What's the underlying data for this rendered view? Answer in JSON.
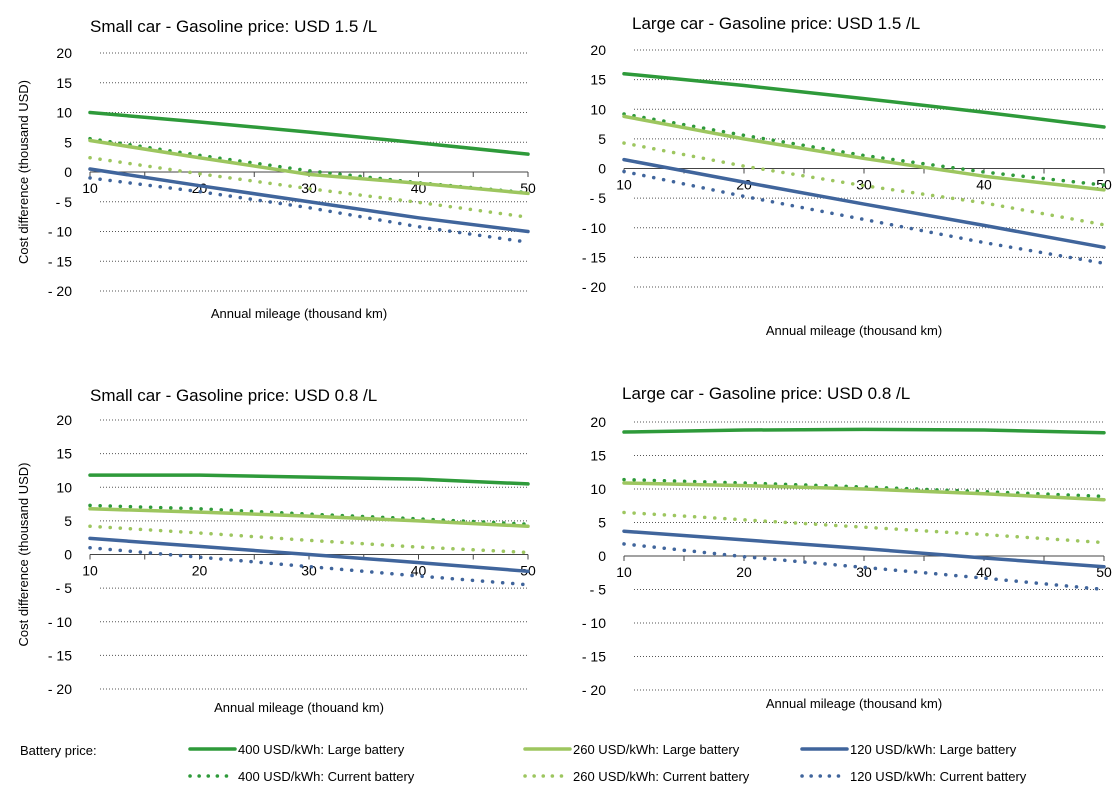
{
  "colors": {
    "dark_green": "#2e9a3a",
    "light_green": "#9dc65f",
    "blue": "#40659c",
    "grid": "#555555"
  },
  "legend": {
    "title": "Battery price:",
    "entries": [
      {
        "label": "400 USD/kWh: Large battery",
        "color": "#2e9a3a",
        "style": "solid"
      },
      {
        "label": "260 USD/kWh: Large battery",
        "color": "#9dc65f",
        "style": "solid"
      },
      {
        "label": "120 USD/kWh: Large battery",
        "color": "#40659c",
        "style": "solid"
      },
      {
        "label": "400 USD/kWh: Current battery",
        "color": "#2e9a3a",
        "style": "dotted"
      },
      {
        "label": "260 USD/kWh: Current battery",
        "color": "#9dc65f",
        "style": "dotted"
      },
      {
        "label": "120 USD/kWh: Current battery",
        "color": "#40659c",
        "style": "dotted"
      }
    ]
  },
  "chart_data": [
    {
      "type": "line",
      "title": "Small car - Gasoline price: USD 1.5 /L",
      "xlabel": "Annual mileage (thousand km)",
      "ylabel": "Cost difference (thousand USD)",
      "x": [
        10,
        20,
        30,
        40,
        50
      ],
      "xlim": [
        10,
        50
      ],
      "ylim": [
        -20,
        20
      ],
      "yticks": [
        20,
        15,
        10,
        5,
        0,
        -5,
        -10,
        -15,
        -20
      ],
      "ytick_labels": [
        "20",
        "15",
        "10",
        "5",
        "0",
        "- 5",
        "- 10",
        "- 15",
        "- 20"
      ],
      "grid": true,
      "series": [
        {
          "name": "400 USD/kWh: Large battery",
          "values": [
            10,
            8.4,
            6.7,
            4.9,
            3
          ]
        },
        {
          "name": "260 USD/kWh: Large battery",
          "values": [
            5.3,
            2.4,
            -0.4,
            -1.9,
            -3.6
          ]
        },
        {
          "name": "120 USD/kWh: Large battery",
          "values": [
            0.5,
            -2.3,
            -5,
            -7.7,
            -10
          ]
        },
        {
          "name": "400 USD/kWh: Current battery",
          "values": [
            5.6,
            2.8,
            0.2,
            -1.8,
            -3.5
          ]
        },
        {
          "name": "260 USD/kWh: Current battery",
          "values": [
            2.4,
            -0.3,
            -2.8,
            -5.1,
            -7.6
          ]
        },
        {
          "name": "120 USD/kWh: Current battery",
          "values": [
            -1,
            -3.3,
            -6,
            -9.2,
            -11.8
          ]
        }
      ]
    },
    {
      "type": "line",
      "title": "Large car - Gasoline price: USD 1.5 /L",
      "xlabel": "Annual mileage (thousand km)",
      "ylabel": "",
      "x": [
        10,
        20,
        30,
        40,
        50
      ],
      "xlim": [
        10,
        50
      ],
      "ylim": [
        -20,
        20
      ],
      "yticks": [
        20,
        15,
        10,
        5,
        0,
        -5,
        -10,
        -15,
        -20
      ],
      "ytick_labels": [
        "20",
        "15",
        "10",
        "5",
        "0",
        "- 5",
        "- 10",
        "- 15",
        "- 20"
      ],
      "grid": true,
      "series": [
        {
          "name": "400 USD/kWh: Large battery",
          "values": [
            16,
            14,
            11.8,
            9.5,
            7
          ]
        },
        {
          "name": "260 USD/kWh: Large battery",
          "values": [
            8.8,
            5,
            1.7,
            -1.3,
            -3.6
          ]
        },
        {
          "name": "120 USD/kWh: Large battery",
          "values": [
            1.5,
            -2.3,
            -6,
            -9.6,
            -13.3
          ]
        },
        {
          "name": "400 USD/kWh: Current battery",
          "values": [
            9.2,
            5.6,
            2.2,
            -0.6,
            -2.8
          ]
        },
        {
          "name": "260 USD/kWh: Current battery",
          "values": [
            4.3,
            0.4,
            -2.9,
            -5.8,
            -9.5
          ]
        },
        {
          "name": "120 USD/kWh: Current battery",
          "values": [
            -0.5,
            -4.7,
            -8.6,
            -12.5,
            -16
          ]
        }
      ]
    },
    {
      "type": "line",
      "title": "Small car - Gasoline price: USD 0.8 /L",
      "xlabel": "Annual mileage (thouand km)",
      "ylabel": "Cost difference (thousand USD)",
      "x": [
        10,
        20,
        30,
        40,
        50
      ],
      "xlim": [
        10,
        50
      ],
      "ylim": [
        -20,
        20
      ],
      "yticks": [
        20,
        15,
        10,
        5,
        0,
        -5,
        -10,
        -15,
        -20
      ],
      "ytick_labels": [
        "20",
        "15",
        "10",
        "5",
        "0",
        "- 5",
        "- 10",
        "- 15",
        "- 20"
      ],
      "grid": true,
      "series": [
        {
          "name": "400 USD/kWh: Large battery",
          "values": [
            11.8,
            11.8,
            11.5,
            11.2,
            10.5
          ]
        },
        {
          "name": "260 USD/kWh: Large battery",
          "values": [
            6.8,
            6.3,
            5.7,
            5,
            4.2
          ]
        },
        {
          "name": "120 USD/kWh: Large battery",
          "values": [
            2.4,
            1.2,
            0,
            -1.2,
            -2.5
          ]
        },
        {
          "name": "400 USD/kWh: Current battery",
          "values": [
            7.3,
            6.8,
            6,
            5.3,
            4.5
          ]
        },
        {
          "name": "260 USD/kWh: Current battery",
          "values": [
            4.2,
            3.2,
            2.1,
            1.1,
            0.3
          ]
        },
        {
          "name": "120 USD/kWh: Current battery",
          "values": [
            1,
            -0.4,
            -1.8,
            -3.2,
            -4.5
          ]
        }
      ]
    },
    {
      "type": "line",
      "title": "Large car - Gasoline price: USD 0.8 /L",
      "xlabel": "Annual mileage (thousand km)",
      "ylabel": "",
      "x": [
        10,
        20,
        30,
        40,
        50
      ],
      "xlim": [
        10,
        50
      ],
      "ylim": [
        -20,
        20
      ],
      "yticks": [
        20,
        15,
        10,
        5,
        0,
        -5,
        -10,
        -15,
        -20
      ],
      "ytick_labels": [
        "20",
        "15",
        "10",
        "5",
        "0",
        "- 5",
        "- 10",
        "- 15",
        "- 20"
      ],
      "grid": true,
      "series": [
        {
          "name": "400 USD/kWh: Large battery",
          "values": [
            18.5,
            18.8,
            18.9,
            18.8,
            18.4
          ]
        },
        {
          "name": "260 USD/kWh: Large battery",
          "values": [
            10.9,
            10.5,
            10,
            9.3,
            8.4
          ]
        },
        {
          "name": "120 USD/kWh: Large battery",
          "values": [
            3.7,
            2.4,
            1.1,
            -0.3,
            -1.6
          ]
        },
        {
          "name": "400 USD/kWh: Current battery",
          "values": [
            11.4,
            10.9,
            10.3,
            9.6,
            8.9
          ]
        },
        {
          "name": "260 USD/kWh: Current battery",
          "values": [
            6.5,
            5.4,
            4.3,
            3.2,
            2
          ]
        },
        {
          "name": "120 USD/kWh: Current battery",
          "values": [
            1.8,
            -0.1,
            -1.7,
            -3.3,
            -5
          ]
        }
      ]
    }
  ]
}
